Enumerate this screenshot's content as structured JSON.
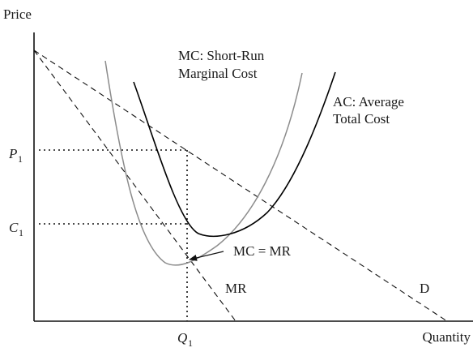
{
  "axes": {
    "y_label": "Price",
    "x_label": "Quantity"
  },
  "ticks": {
    "p1": "P",
    "p1_sub": "1",
    "c1": "C",
    "c1_sub": "1",
    "q1": "Q",
    "q1_sub": "1"
  },
  "curves": {
    "mc_line1": "MC: Short-Run",
    "mc_line2": "Marginal Cost",
    "ac_line1": "AC: Average",
    "ac_line2": "Total Cost",
    "mr": "MR",
    "d": "D"
  },
  "annotation": {
    "mc_eq_mr": "MC = MR"
  },
  "colors": {
    "ac_curve": "#000000",
    "mc_curve": "#8c8c8c"
  }
}
